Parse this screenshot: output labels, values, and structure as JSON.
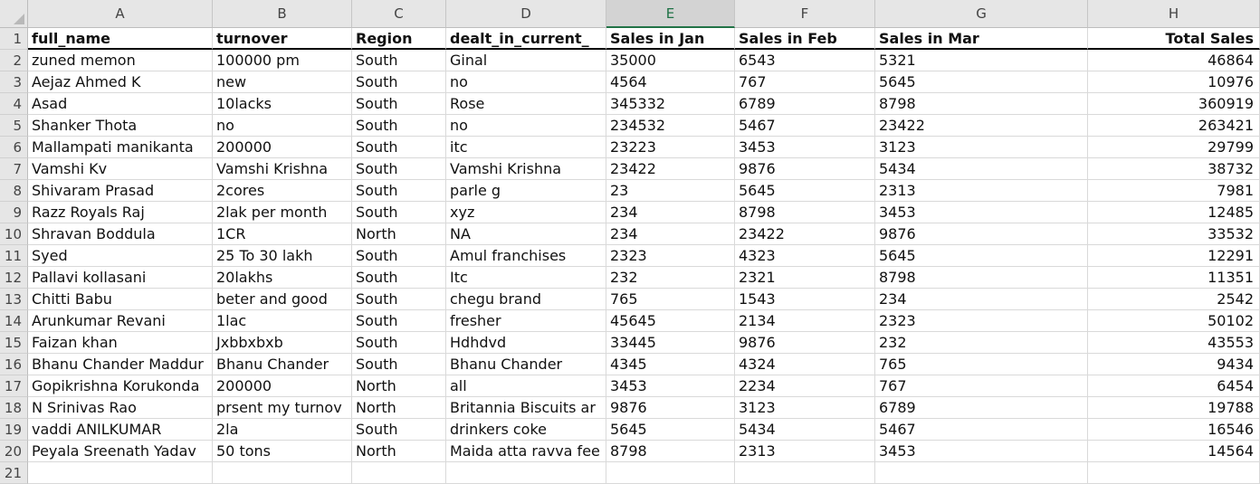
{
  "columns": [
    "A",
    "B",
    "C",
    "D",
    "E",
    "F",
    "G",
    "H"
  ],
  "selected_column": "E",
  "row_numbers": [
    "1",
    "2",
    "3",
    "4",
    "5",
    "6",
    "7",
    "8",
    "9",
    "10",
    "11",
    "12",
    "13",
    "14",
    "15",
    "16",
    "17",
    "18",
    "19",
    "20",
    "21"
  ],
  "header": {
    "full_name": "full_name",
    "turnover": "turnover",
    "region": "Region",
    "dealt": "dealt_in_current_",
    "jan": "Sales in  Jan",
    "feb": "Sales in Feb",
    "mar": "Sales in Mar",
    "total": "Total Sales"
  },
  "rows": [
    [
      "zuned memon",
      "100000 pm",
      "South",
      "Ginal",
      "35000",
      "6543",
      "5321",
      "46864"
    ],
    [
      "Aejaz Ahmed K",
      "new",
      "South",
      "no",
      "4564",
      "767",
      "5645",
      "10976"
    ],
    [
      "Asad",
      "10lacks",
      "South",
      "Rose",
      "345332",
      "6789",
      "8798",
      "360919"
    ],
    [
      "Shanker Thota",
      "no",
      "South",
      "no",
      "234532",
      "5467",
      "23422",
      "263421"
    ],
    [
      "Mallampati manikanta",
      "200000",
      "South",
      "itc",
      "23223",
      "3453",
      "3123",
      "29799"
    ],
    [
      "Vamshi Kv",
      "Vamshi Krishna",
      "South",
      "Vamshi Krishna",
      "23422",
      "9876",
      "5434",
      "38732"
    ],
    [
      "Shivaram Prasad",
      "2cores",
      "South",
      "parle g",
      "23",
      "5645",
      "2313",
      "7981"
    ],
    [
      "Razz Royals Raj",
      "2lak per month",
      "South",
      "xyz",
      "234",
      "8798",
      "3453",
      "12485"
    ],
    [
      "Shravan Boddula",
      "1CR",
      "North",
      "NA",
      "234",
      "23422",
      "9876",
      "33532"
    ],
    [
      "Syed",
      "25 To 30 lakh",
      "South",
      "Amul franchises",
      "2323",
      "4323",
      "5645",
      "12291"
    ],
    [
      "Pallavi kollasani",
      "20lakhs",
      "South",
      "Itc",
      "232",
      "2321",
      "8798",
      "11351"
    ],
    [
      "Chitti Babu",
      "beter and good",
      "South",
      "chegu brand",
      "765",
      "1543",
      "234",
      "2542"
    ],
    [
      "Arunkumar Revani",
      "1lac",
      "South",
      "fresher",
      "45645",
      "2134",
      "2323",
      "50102"
    ],
    [
      "Faizan khan",
      "Jxbbxbxb",
      "South",
      "Hdhdvd",
      "33445",
      "9876",
      "232",
      "43553"
    ],
    [
      "Bhanu Chander Maddur",
      "Bhanu Chander",
      "South",
      "Bhanu Chander",
      "4345",
      "4324",
      "765",
      "9434"
    ],
    [
      "Gopikrishna Korukonda",
      "200000",
      "North",
      "all",
      "3453",
      "2234",
      "767",
      "6454"
    ],
    [
      "N Srinivas Rao",
      "prsent my turnov",
      "North",
      "Britannia Biscuits ar",
      "9876",
      "3123",
      "6789",
      "19788"
    ],
    [
      "vaddi ANILKUMAR",
      "2la",
      "South",
      "drinkers coke",
      "5645",
      "5434",
      "5467",
      "16546"
    ],
    [
      "Peyala Sreenath Yadav",
      "50 tons",
      "North",
      "Maida atta ravva fee",
      "8798",
      "2313",
      "3453",
      "14564"
    ]
  ]
}
